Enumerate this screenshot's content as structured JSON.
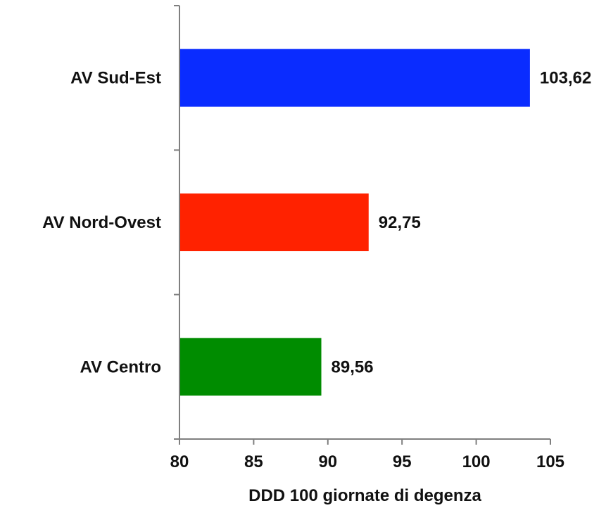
{
  "chart_data": {
    "type": "bar",
    "orientation": "horizontal",
    "categories": [
      "AV Sud-Est",
      "AV Nord-Ovest",
      "AV Centro"
    ],
    "values": [
      103.62,
      92.75,
      89.56
    ],
    "value_labels": [
      "103,62",
      "92,75",
      "89,56"
    ],
    "bar_colors": [
      "#0a2cff",
      "#ff2200",
      "#008c00"
    ],
    "xlabel": "DDD 100 giornate di degenza",
    "ylabel": "",
    "title": "",
    "xlim": [
      80,
      105
    ],
    "x_ticks": [
      80,
      85,
      90,
      95,
      100,
      105
    ],
    "x_tick_labels": [
      "80",
      "85",
      "90",
      "95",
      "100",
      "105"
    ],
    "grid": false,
    "legend": "none"
  }
}
